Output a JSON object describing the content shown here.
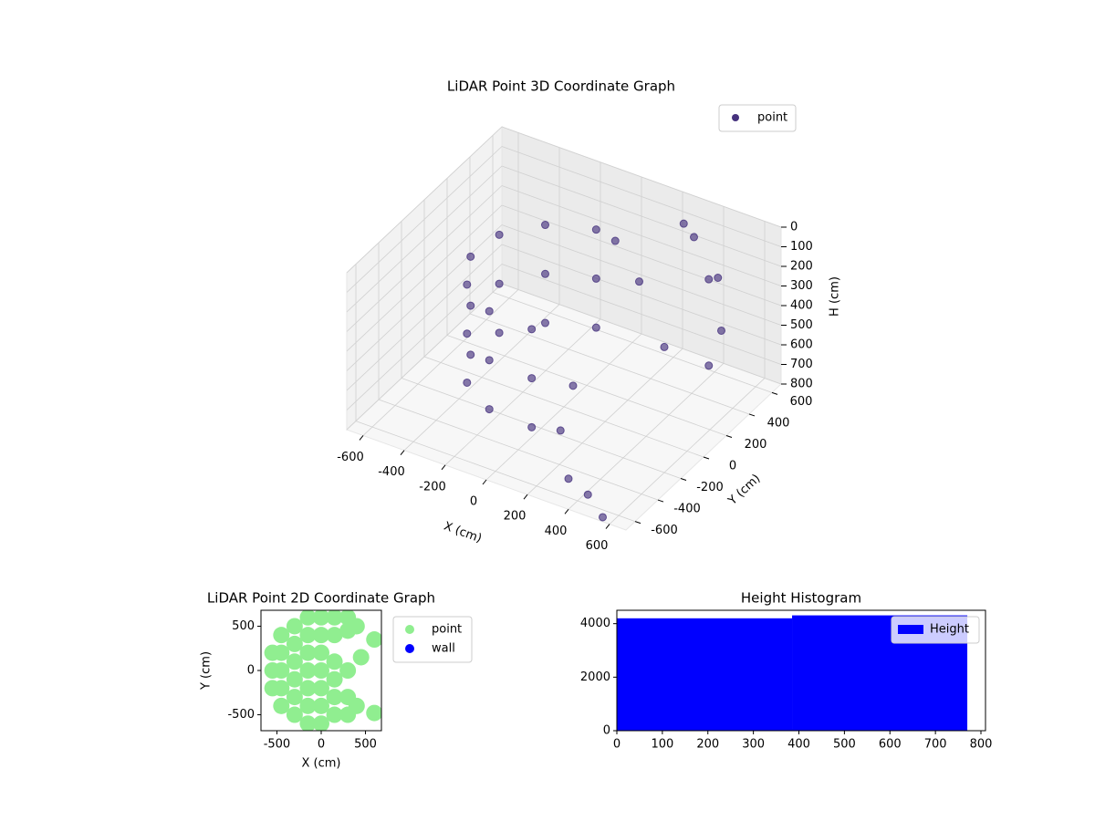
{
  "chart_data": [
    {
      "type": "scatter3d",
      "title": "LiDAR Point 3D Coordinate Graph",
      "x_label": "X (cm)",
      "y_label": "Y (cm)",
      "z_label": "H (cm)",
      "xlim": [
        -680,
        680
      ],
      "ylim": [
        -680,
        680
      ],
      "zlim": [
        800,
        0
      ],
      "xticks": [
        -600,
        -400,
        -200,
        0,
        200,
        400,
        600
      ],
      "yticks": [
        -600,
        -400,
        -200,
        0,
        200,
        400,
        600
      ],
      "zticks": [
        0,
        100,
        200,
        300,
        400,
        500,
        600,
        700,
        800
      ],
      "grid": true,
      "legend": "upper right",
      "series": [
        {
          "name": "point",
          "color": "#46327e",
          "x": [
            -73,
            -73,
            -73,
            -270,
            -270,
            -270,
            -395,
            -395,
            -395,
            -414,
            -414,
            -414,
            -322,
            -322,
            -322,
            -144,
            -144,
            -144,
            73,
            73,
            73,
            300,
            400,
            500,
            600,
            650,
            200,
            350,
            100,
            150,
            300,
            450,
            550,
            250,
            0
          ],
          "y": [
            414,
            414,
            414,
            322,
            322,
            322,
            144,
            144,
            144,
            -73,
            -73,
            -73,
            -270,
            -270,
            -270,
            -395,
            -395,
            -395,
            -414,
            -414,
            -414,
            600,
            550,
            450,
            300,
            100,
            300,
            250,
            -100,
            -300,
            -500,
            -600,
            -650,
            600,
            450
          ],
          "z": [
            150,
            400,
            650,
            150,
            400,
            650,
            150,
            400,
            650,
            150,
            400,
            650,
            150,
            400,
            650,
            150,
            400,
            650,
            150,
            400,
            650,
            150,
            300,
            200,
            350,
            400,
            250,
            500,
            600,
            700,
            780,
            750,
            800,
            100,
            200
          ]
        }
      ]
    },
    {
      "type": "scatter",
      "title": "LiDAR Point 2D Coordinate Graph",
      "x_label": "X (cm)",
      "y_label": "Y (cm)",
      "xlim": [
        -680,
        680
      ],
      "ylim": [
        -680,
        680
      ],
      "xticks": [
        -500,
        0,
        500
      ],
      "yticks": [
        -500,
        0,
        500
      ],
      "legend": "outside right",
      "series": [
        {
          "name": "point",
          "color": "#90ee90",
          "x": [
            -550,
            -550,
            -550,
            -450,
            -450,
            -450,
            -450,
            -450,
            -300,
            -300,
            -300,
            -300,
            -300,
            -300,
            -150,
            -150,
            -150,
            -150,
            -150,
            -150,
            -150,
            0,
            0,
            0,
            0,
            0,
            0,
            0,
            150,
            150,
            150,
            150,
            150,
            150,
            300,
            300,
            300,
            300,
            300,
            400,
            400,
            450,
            600,
            600
          ],
          "y": [
            -200,
            0,
            200,
            -400,
            -200,
            0,
            200,
            400,
            -500,
            -300,
            -100,
            100,
            300,
            500,
            -600,
            -400,
            -200,
            0,
            200,
            400,
            600,
            -600,
            -400,
            -200,
            0,
            200,
            400,
            600,
            -500,
            -300,
            -100,
            100,
            400,
            600,
            -500,
            -300,
            0,
            450,
            600,
            -400,
            500,
            150,
            350,
            -480
          ]
        },
        {
          "name": "wall",
          "color": "#0000ff",
          "x": [],
          "y": []
        }
      ]
    },
    {
      "type": "histogram",
      "title": "Height Histogram",
      "xlim": [
        0,
        810
      ],
      "ylim": [
        0,
        4500
      ],
      "xticks": [
        0,
        100,
        200,
        300,
        400,
        500,
        600,
        700,
        800
      ],
      "yticks": [
        0,
        2000,
        4000
      ],
      "legend": "upper right",
      "series": [
        {
          "name": "Height",
          "color": "#0000ff",
          "bins": [
            0,
            385,
            770
          ],
          "counts": [
            4200,
            4310
          ]
        }
      ]
    }
  ]
}
